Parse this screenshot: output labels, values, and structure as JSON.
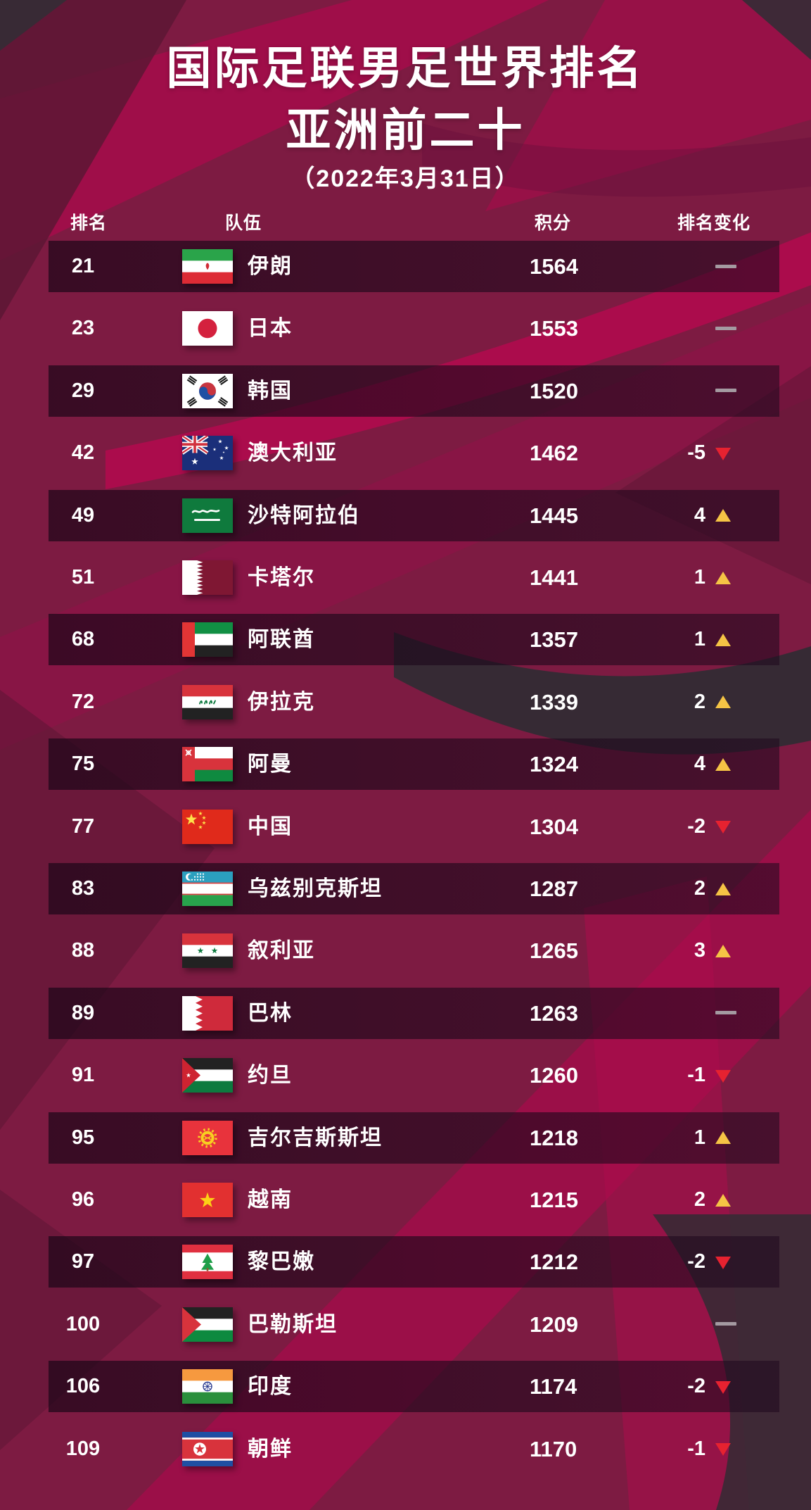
{
  "chart_data": {
    "type": "table",
    "title_line1": "国际足联男足世界排名",
    "title_line2": "亚洲前二十",
    "date_label": "（2022年3月31日）",
    "columns": {
      "rank": "排名",
      "team": "队伍",
      "points": "积分",
      "change": "排名变化"
    },
    "rows": [
      {
        "rank": "21",
        "team": "伊朗",
        "flag": "ir",
        "points": "1564",
        "change": "",
        "direction": "none"
      },
      {
        "rank": "23",
        "team": "日本",
        "flag": "jp",
        "points": "1553",
        "change": "",
        "direction": "none"
      },
      {
        "rank": "29",
        "team": "韩国",
        "flag": "kr",
        "points": "1520",
        "change": "",
        "direction": "none"
      },
      {
        "rank": "42",
        "team": "澳大利亚",
        "flag": "au",
        "points": "1462",
        "change": "-5",
        "direction": "down"
      },
      {
        "rank": "49",
        "team": "沙特阿拉伯",
        "flag": "sa",
        "points": "1445",
        "change": "4",
        "direction": "up"
      },
      {
        "rank": "51",
        "team": "卡塔尔",
        "flag": "qa",
        "points": "1441",
        "change": "1",
        "direction": "up"
      },
      {
        "rank": "68",
        "team": "阿联酋",
        "flag": "ae",
        "points": "1357",
        "change": "1",
        "direction": "up"
      },
      {
        "rank": "72",
        "team": "伊拉克",
        "flag": "iq",
        "points": "1339",
        "change": "2",
        "direction": "up"
      },
      {
        "rank": "75",
        "team": "阿曼",
        "flag": "om",
        "points": "1324",
        "change": "4",
        "direction": "up"
      },
      {
        "rank": "77",
        "team": "中国",
        "flag": "cn",
        "points": "1304",
        "change": "-2",
        "direction": "down"
      },
      {
        "rank": "83",
        "team": "乌兹别克斯坦",
        "flag": "uz",
        "points": "1287",
        "change": "2",
        "direction": "up"
      },
      {
        "rank": "88",
        "team": "叙利亚",
        "flag": "sy",
        "points": "1265",
        "change": "3",
        "direction": "up"
      },
      {
        "rank": "89",
        "team": "巴林",
        "flag": "bh",
        "points": "1263",
        "change": "",
        "direction": "none"
      },
      {
        "rank": "91",
        "team": "约旦",
        "flag": "jo",
        "points": "1260",
        "change": "-1",
        "direction": "down"
      },
      {
        "rank": "95",
        "team": "吉尔吉斯斯坦",
        "flag": "kg",
        "points": "1218",
        "change": "1",
        "direction": "up"
      },
      {
        "rank": "96",
        "team": "越南",
        "flag": "vn",
        "points": "1215",
        "change": "2",
        "direction": "up"
      },
      {
        "rank": "97",
        "team": "黎巴嫩",
        "flag": "lb",
        "points": "1212",
        "change": "-2",
        "direction": "down"
      },
      {
        "rank": "100",
        "team": "巴勒斯坦",
        "flag": "ps",
        "points": "1209",
        "change": "",
        "direction": "none"
      },
      {
        "rank": "106",
        "team": "印度",
        "flag": "in",
        "points": "1174",
        "change": "-2",
        "direction": "down"
      },
      {
        "rank": "109",
        "team": "朝鲜",
        "flag": "kp",
        "points": "1170",
        "change": "-1",
        "direction": "down"
      }
    ]
  },
  "icons": {
    "up": "triangle-up-icon",
    "down": "triangle-down-icon",
    "none": "no-change-dash-icon"
  },
  "colors": {
    "background_base": "#7d1b42",
    "accent_bright": "#a60e4c",
    "accent_dark_maroon": "#5c1634",
    "accent_charcoal": "#332b34",
    "row_band": "rgba(24,5,22,0.64)",
    "up_triangle": "#f5c445",
    "down_triangle": "#e62230",
    "no_change_dash": "#a49aa1",
    "text": "#ffffff"
  }
}
